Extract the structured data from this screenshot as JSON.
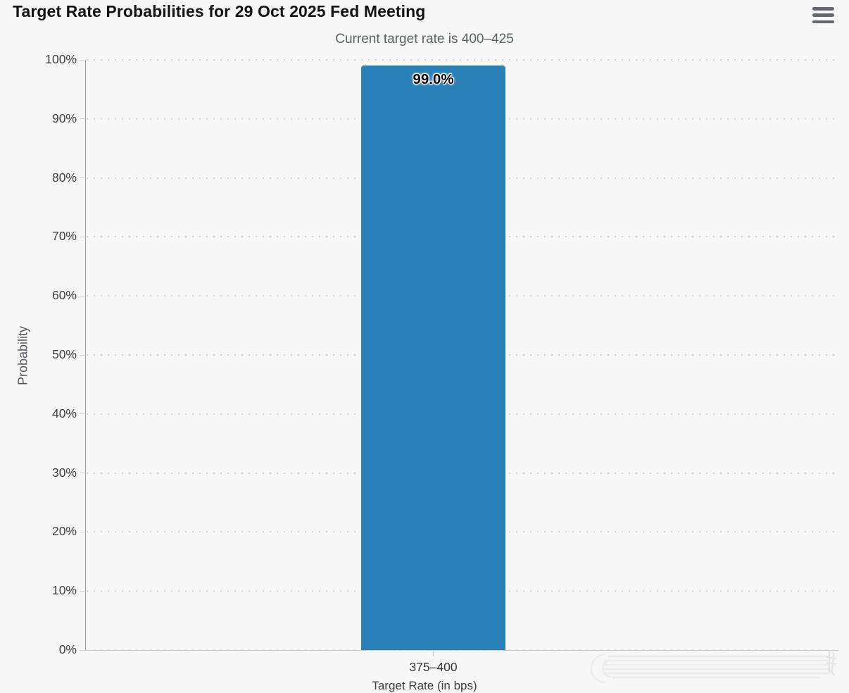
{
  "header": {
    "title": "Target Rate Probabilities for 29 Oct 2025 Fed Meeting",
    "menu_icon": "hamburger-icon"
  },
  "chart": {
    "subtitle": "Current target rate is 400–425",
    "ylabel": "Probability",
    "xlabel": "Target Rate (in bps)",
    "yticks": [
      "100%",
      "90%",
      "80%",
      "70%",
      "60%",
      "50%",
      "40%",
      "30%",
      "20%",
      "10%",
      "0%"
    ],
    "category": "375–400",
    "data_label": "99.0%"
  },
  "chart_data": {
    "type": "bar",
    "title": "Target Rate Probabilities for 29 Oct 2025 Fed Meeting",
    "subtitle": "Current target rate is 400–425",
    "categories": [
      "375–400"
    ],
    "values": [
      99.0
    ],
    "data_labels": [
      "99.0%"
    ],
    "xlabel": "Target Rate (in bps)",
    "ylabel": "Probability",
    "ylim": [
      0,
      100
    ],
    "ytick_step": 10,
    "ytick_format": "percent",
    "grid": "dotted-horizontal",
    "legend": "none",
    "bar_color": "#2a81ba"
  },
  "colors": {
    "background": "#f7f7f7",
    "bar": "#2a81ba",
    "title_text": "#111315",
    "subtitle_text": "#5a6169",
    "axis_label_text": "#3b3e43",
    "axis_line": "#979a9e",
    "gridline": "#d3d3d3"
  }
}
